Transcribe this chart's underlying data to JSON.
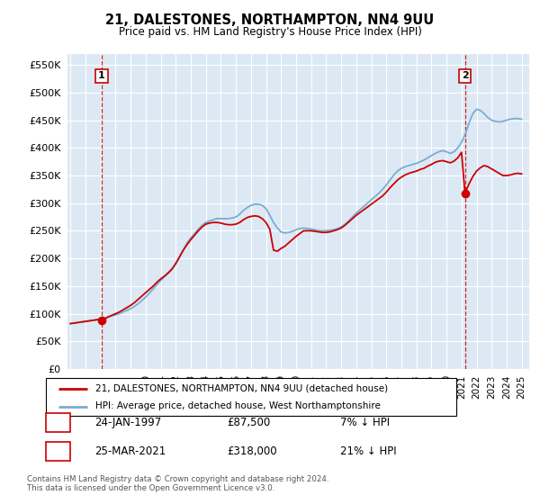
{
  "title": "21, DALESTONES, NORTHAMPTON, NN4 9UU",
  "subtitle": "Price paid vs. HM Land Registry's House Price Index (HPI)",
  "ylim": [
    0,
    570000
  ],
  "yticks": [
    0,
    50000,
    100000,
    150000,
    200000,
    250000,
    300000,
    350000,
    400000,
    450000,
    500000,
    550000
  ],
  "ytick_labels": [
    "£0",
    "£50K",
    "£100K",
    "£150K",
    "£200K",
    "£250K",
    "£300K",
    "£350K",
    "£400K",
    "£450K",
    "£500K",
    "£550K"
  ],
  "plot_bg_color": "#dce9f5",
  "sale1_x": 1997.07,
  "sale1_y": 87500,
  "sale1_label": "1",
  "sale2_x": 2021.23,
  "sale2_y": 318000,
  "sale2_label": "2",
  "legend_entry1": "21, DALESTONES, NORTHAMPTON, NN4 9UU (detached house)",
  "legend_entry2": "HPI: Average price, detached house, West Northamptonshire",
  "table_row1": [
    "1",
    "24-JAN-1997",
    "£87,500",
    "7% ↓ HPI"
  ],
  "table_row2": [
    "2",
    "25-MAR-2021",
    "£318,000",
    "21% ↓ HPI"
  ],
  "footnote": "Contains HM Land Registry data © Crown copyright and database right 2024.\nThis data is licensed under the Open Government Licence v3.0.",
  "line_color_red": "#cc0000",
  "line_color_blue": "#7aadcf",
  "grid_color": "#ffffff",
  "xmin": 1994.8,
  "xmax": 2025.5,
  "years_hpi": [
    1995.0,
    1995.25,
    1995.5,
    1995.75,
    1996.0,
    1996.25,
    1996.5,
    1996.75,
    1997.0,
    1997.25,
    1997.5,
    1997.75,
    1998.0,
    1998.25,
    1998.5,
    1998.75,
    1999.0,
    1999.25,
    1999.5,
    1999.75,
    2000.0,
    2000.25,
    2000.5,
    2000.75,
    2001.0,
    2001.25,
    2001.5,
    2001.75,
    2002.0,
    2002.25,
    2002.5,
    2002.75,
    2003.0,
    2003.25,
    2003.5,
    2003.75,
    2004.0,
    2004.25,
    2004.5,
    2004.75,
    2005.0,
    2005.25,
    2005.5,
    2005.75,
    2006.0,
    2006.25,
    2006.5,
    2006.75,
    2007.0,
    2007.25,
    2007.5,
    2007.75,
    2008.0,
    2008.25,
    2008.5,
    2008.75,
    2009.0,
    2009.25,
    2009.5,
    2009.75,
    2010.0,
    2010.25,
    2010.5,
    2010.75,
    2011.0,
    2011.25,
    2011.5,
    2011.75,
    2012.0,
    2012.25,
    2012.5,
    2012.75,
    2013.0,
    2013.25,
    2013.5,
    2013.75,
    2014.0,
    2014.25,
    2014.5,
    2014.75,
    2015.0,
    2015.25,
    2015.5,
    2015.75,
    2016.0,
    2016.25,
    2016.5,
    2016.75,
    2017.0,
    2017.25,
    2017.5,
    2017.75,
    2018.0,
    2018.25,
    2018.5,
    2018.75,
    2019.0,
    2019.25,
    2019.5,
    2019.75,
    2020.0,
    2020.25,
    2020.5,
    2020.75,
    2021.0,
    2021.25,
    2021.5,
    2021.75,
    2022.0,
    2022.25,
    2022.5,
    2022.75,
    2023.0,
    2023.25,
    2023.5,
    2023.75,
    2024.0,
    2024.25,
    2024.5,
    2024.75,
    2025.0
  ],
  "hpi_values": [
    82000,
    83000,
    84000,
    85000,
    86000,
    87000,
    88000,
    89000,
    90000,
    92000,
    94000,
    96000,
    98000,
    100000,
    103000,
    106000,
    109000,
    113000,
    118000,
    124000,
    130000,
    137000,
    145000,
    153000,
    160000,
    167000,
    173000,
    180000,
    190000,
    202000,
    215000,
    228000,
    237000,
    245000,
    253000,
    260000,
    265000,
    268000,
    270000,
    272000,
    272000,
    272000,
    272000,
    273000,
    275000,
    280000,
    287000,
    292000,
    296000,
    298000,
    298000,
    296000,
    290000,
    278000,
    265000,
    255000,
    248000,
    246000,
    247000,
    249000,
    252000,
    254000,
    255000,
    254000,
    253000,
    252000,
    250000,
    250000,
    250000,
    251000,
    252000,
    254000,
    257000,
    262000,
    268000,
    275000,
    282000,
    288000,
    294000,
    300000,
    306000,
    312000,
    318000,
    325000,
    333000,
    342000,
    351000,
    358000,
    363000,
    366000,
    368000,
    370000,
    372000,
    375000,
    378000,
    382000,
    386000,
    390000,
    393000,
    395000,
    393000,
    390000,
    393000,
    400000,
    410000,
    425000,
    445000,
    462000,
    470000,
    468000,
    462000,
    455000,
    450000,
    448000,
    447000,
    448000,
    450000,
    452000,
    453000,
    453000,
    452000
  ],
  "years_pp": [
    1995.0,
    1995.25,
    1995.5,
    1995.75,
    1996.0,
    1996.25,
    1996.5,
    1996.75,
    1997.0,
    1997.1,
    1997.5,
    1997.75,
    1998.0,
    1998.25,
    1998.5,
    1998.75,
    1999.0,
    1999.25,
    1999.5,
    1999.75,
    2000.0,
    2000.25,
    2000.5,
    2000.75,
    2001.0,
    2001.25,
    2001.5,
    2001.75,
    2002.0,
    2002.25,
    2002.5,
    2002.75,
    2003.0,
    2003.25,
    2003.5,
    2003.75,
    2004.0,
    2004.25,
    2004.5,
    2004.75,
    2005.0,
    2005.25,
    2005.5,
    2005.75,
    2006.0,
    2006.25,
    2006.5,
    2006.75,
    2007.0,
    2007.25,
    2007.5,
    2007.75,
    2008.0,
    2008.25,
    2008.5,
    2008.75,
    2009.0,
    2009.25,
    2009.5,
    2009.75,
    2010.0,
    2010.25,
    2010.5,
    2010.75,
    2011.0,
    2011.25,
    2011.5,
    2011.75,
    2012.0,
    2012.25,
    2012.5,
    2012.75,
    2013.0,
    2013.25,
    2013.5,
    2013.75,
    2014.0,
    2014.25,
    2014.5,
    2014.75,
    2015.0,
    2015.25,
    2015.5,
    2015.75,
    2016.0,
    2016.25,
    2016.5,
    2016.75,
    2017.0,
    2017.25,
    2017.5,
    2017.75,
    2018.0,
    2018.25,
    2018.5,
    2018.75,
    2019.0,
    2019.25,
    2019.5,
    2019.75,
    2020.0,
    2020.25,
    2020.5,
    2020.75,
    2021.0,
    2021.23,
    2021.5,
    2021.75,
    2022.0,
    2022.25,
    2022.5,
    2022.75,
    2023.0,
    2023.25,
    2023.5,
    2023.75,
    2024.0,
    2024.25,
    2024.5,
    2024.75,
    2025.0
  ],
  "pp_values": [
    82000,
    83000,
    84000,
    85000,
    86000,
    87000,
    88000,
    89000,
    90000,
    87500,
    94000,
    97000,
    100000,
    103000,
    107000,
    111000,
    115000,
    120000,
    126000,
    132000,
    138000,
    144000,
    150000,
    157000,
    163000,
    168000,
    174000,
    181000,
    191000,
    203000,
    215000,
    225000,
    234000,
    242000,
    250000,
    257000,
    262000,
    264000,
    265000,
    265000,
    264000,
    262000,
    261000,
    261000,
    262000,
    265000,
    270000,
    274000,
    276000,
    277000,
    276000,
    272000,
    265000,
    253000,
    215000,
    213000,
    218000,
    222000,
    228000,
    234000,
    240000,
    245000,
    250000,
    250000,
    250000,
    249000,
    248000,
    247000,
    247000,
    248000,
    250000,
    252000,
    255000,
    260000,
    266000,
    272000,
    278000,
    283000,
    288000,
    293000,
    298000,
    303000,
    308000,
    313000,
    320000,
    328000,
    335000,
    342000,
    347000,
    351000,
    354000,
    356000,
    358000,
    361000,
    363000,
    367000,
    370000,
    374000,
    376000,
    377000,
    375000,
    373000,
    376000,
    382000,
    392000,
    318000,
    335000,
    348000,
    358000,
    364000,
    368000,
    366000,
    362000,
    358000,
    354000,
    350000,
    350000,
    351000,
    353000,
    354000,
    353000
  ]
}
